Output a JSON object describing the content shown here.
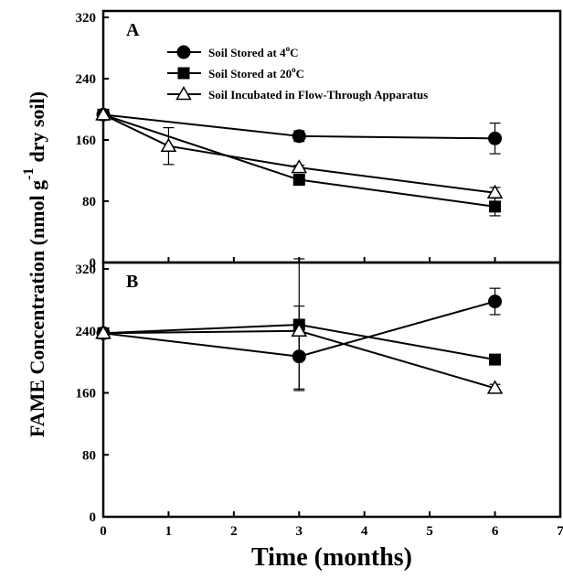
{
  "chart_data": {
    "type": "line",
    "xlabel": "Time (months)",
    "ylabel": "FAME Concentration (nmol g",
    "ylabel_superscript": "-1",
    "ylabel_suffix": "dry soil)",
    "xlim": [
      0,
      7
    ],
    "x_ticks": [
      "0",
      "1",
      "2",
      "3",
      "4",
      "5",
      "6",
      "7"
    ],
    "ylim": [
      0,
      320
    ],
    "y_ticks": [
      "0",
      "80",
      "160",
      "240",
      "320"
    ],
    "legend": {
      "placement": "top-center",
      "entries": [
        {
          "base": "Soil Stored at 4",
          "sup": "o",
          "tail": "C",
          "marker": "circle"
        },
        {
          "base": "Soil Stored at 20",
          "sup": "o",
          "tail": "C",
          "marker": "square"
        },
        {
          "base": "Soil Incubated in Flow-Through Apparatus",
          "sup": "",
          "tail": "",
          "marker": "triangle-open"
        }
      ]
    },
    "panels": [
      {
        "label": "A",
        "series": [
          {
            "marker": "circle",
            "points": [
              {
                "x": 0,
                "y": 193,
                "err": 0
              },
              {
                "x": 3,
                "y": 165,
                "err": 7
              },
              {
                "x": 6,
                "y": 162,
                "err": 20
              }
            ]
          },
          {
            "marker": "square",
            "points": [
              {
                "x": 0,
                "y": 193,
                "err": 0
              },
              {
                "x": 3,
                "y": 108,
                "err": 4
              },
              {
                "x": 6,
                "y": 73,
                "err": 12
              }
            ]
          },
          {
            "marker": "triangle-open",
            "points": [
              {
                "x": 0,
                "y": 193,
                "err": 0
              },
              {
                "x": 1,
                "y": 152,
                "err": 24
              },
              {
                "x": 3,
                "y": 124,
                "err": 3
              },
              {
                "x": 6,
                "y": 91,
                "err": 7
              }
            ]
          }
        ]
      },
      {
        "label": "B",
        "series": [
          {
            "marker": "circle",
            "points": [
              {
                "x": 0,
                "y": 237,
                "err": 0
              },
              {
                "x": 3,
                "y": 207,
                "err": 42
              },
              {
                "x": 6,
                "y": 278,
                "err": 17
              }
            ]
          },
          {
            "marker": "square",
            "points": [
              {
                "x": 0,
                "y": 237,
                "err": 0
              },
              {
                "x": 3,
                "y": 248,
                "err": 85
              },
              {
                "x": 6,
                "y": 203,
                "err": 3
              }
            ]
          },
          {
            "marker": "triangle-open",
            "points": [
              {
                "x": 0,
                "y": 237,
                "err": 0
              },
              {
                "x": 3,
                "y": 240,
                "err": 32
              },
              {
                "x": 6,
                "y": 166,
                "err": 5
              }
            ]
          }
        ]
      }
    ]
  }
}
